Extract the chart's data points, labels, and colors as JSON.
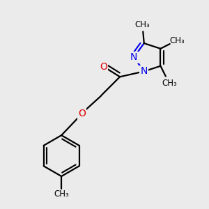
{
  "background_color": "#ebebeb",
  "bond_color": "#000000",
  "nitrogen_color": "#0000ee",
  "oxygen_color": "#dd0000",
  "line_width": 1.6,
  "figsize": [
    3.0,
    3.0
  ],
  "dpi": 100,
  "xlim": [
    0,
    10
  ],
  "ylim": [
    0,
    10
  ]
}
